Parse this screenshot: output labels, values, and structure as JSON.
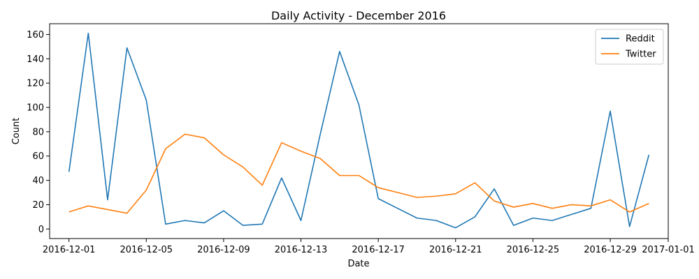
{
  "chart_data": {
    "type": "line",
    "title": "Daily Activity - December 2016",
    "xlabel": "Date",
    "ylabel": "Count",
    "x": [
      "2016-12-01",
      "2016-12-02",
      "2016-12-03",
      "2016-12-04",
      "2016-12-05",
      "2016-12-06",
      "2016-12-07",
      "2016-12-08",
      "2016-12-09",
      "2016-12-10",
      "2016-12-11",
      "2016-12-12",
      "2016-12-13",
      "2016-12-14",
      "2016-12-15",
      "2016-12-16",
      "2016-12-17",
      "2016-12-18",
      "2016-12-19",
      "2016-12-20",
      "2016-12-21",
      "2016-12-22",
      "2016-12-23",
      "2016-12-24",
      "2016-12-25",
      "2016-12-26",
      "2016-12-27",
      "2016-12-28",
      "2016-12-29",
      "2016-12-30",
      "2016-12-31"
    ],
    "xlim": [
      "2016-11-30",
      "2017-01-01"
    ],
    "ylim": [
      -7.85,
      168.85
    ],
    "x_ticks": [
      "2016-12-01",
      "2016-12-05",
      "2016-12-09",
      "2016-12-13",
      "2016-12-17",
      "2016-12-21",
      "2016-12-25",
      "2016-12-29",
      "2017-01-01"
    ],
    "y_ticks": [
      0,
      20,
      40,
      60,
      80,
      100,
      120,
      140,
      160
    ],
    "grid": false,
    "legend": "top-right",
    "series": [
      {
        "name": "Reddit",
        "color": "#1f77b4",
        "values": [
          47,
          161,
          24,
          149,
          106,
          4,
          7,
          5,
          15,
          3,
          4,
          42,
          7,
          78,
          146,
          102,
          25,
          17,
          9,
          7,
          1,
          10,
          33,
          3,
          9,
          7,
          12,
          17,
          97,
          2,
          61
        ]
      },
      {
        "name": "Twitter",
        "color": "#ff7f0e",
        "values": [
          14,
          19,
          16,
          13,
          32,
          66,
          78,
          75,
          61,
          51,
          36,
          71,
          64,
          58,
          44,
          44,
          34,
          30,
          26,
          27,
          29,
          38,
          23,
          18,
          21,
          17,
          20,
          19,
          24,
          14,
          21
        ]
      }
    ]
  }
}
